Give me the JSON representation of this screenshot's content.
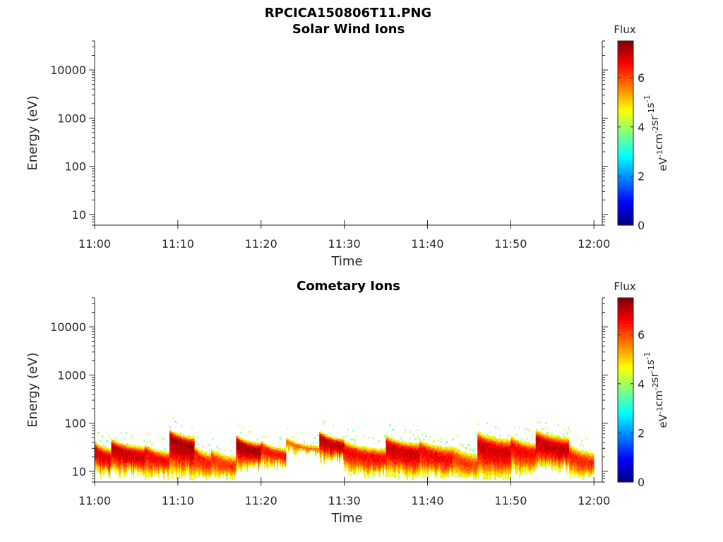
{
  "figure": {
    "title": "RPCICA150806T11.PNG"
  },
  "chart_data": [
    {
      "type": "heatmap",
      "title": "Solar Wind Ions",
      "xlabel": "Time",
      "ylabel": "Energy (eV)",
      "yscale": "log",
      "xlim": [
        "11:00",
        "12:01"
      ],
      "ylim": [
        6,
        40000
      ],
      "x_ticks": [
        "11:00",
        "11:10",
        "11:20",
        "11:30",
        "11:40",
        "11:50",
        "12:00"
      ],
      "y_ticks": [
        "10",
        "100",
        "1000",
        "10000"
      ],
      "colorbar": {
        "label": "Flux",
        "unit": "eV-1cm-2sr-1s-1",
        "range": [
          0,
          7.5
        ],
        "ticks": [
          "0",
          "2",
          "4",
          "6"
        ],
        "colormap": "jet"
      },
      "segments": []
    },
    {
      "type": "heatmap",
      "title": "Cometary Ions",
      "xlabel": "Time",
      "ylabel": "Energy (eV)",
      "yscale": "log",
      "xlim": [
        "11:00",
        "12:01"
      ],
      "ylim": [
        6,
        40000
      ],
      "x_ticks": [
        "11:00",
        "11:10",
        "11:20",
        "11:30",
        "11:40",
        "11:50",
        "12:00"
      ],
      "y_ticks": [
        "10",
        "100",
        "1000",
        "10000"
      ],
      "colorbar": {
        "label": "Flux",
        "unit": "eV-1cm-2sr-1s-1",
        "range": [
          0,
          7.5
        ],
        "ticks": [
          "0",
          "2",
          "4",
          "6"
        ],
        "colormap": "jet"
      },
      "segments": [
        {
          "t0": "11:00",
          "t1": "11:02",
          "peak_energy": 22,
          "low_energy": 8,
          "high_energy": 35,
          "peak_flux": 6.8
        },
        {
          "t0": "11:02",
          "t1": "11:06",
          "peak_energy": 25,
          "low_energy": 8,
          "high_energy": 38,
          "peak_flux": 7.0
        },
        {
          "t0": "11:06",
          "t1": "11:09",
          "peak_energy": 20,
          "low_energy": 7,
          "high_energy": 30,
          "peak_flux": 6.6
        },
        {
          "t0": "11:09",
          "t1": "11:12",
          "peak_energy": 40,
          "low_energy": 7,
          "high_energy": 60,
          "peak_flux": 7.2
        },
        {
          "t0": "11:12",
          "t1": "11:14",
          "peak_energy": 18,
          "low_energy": 6,
          "high_energy": 28,
          "peak_flux": 6.4
        },
        {
          "t0": "11:14",
          "t1": "11:17",
          "peak_energy": 15,
          "low_energy": 6,
          "high_energy": 25,
          "peak_flux": 6.2
        },
        {
          "t0": "11:17",
          "t1": "11:20",
          "peak_energy": 32,
          "low_energy": 10,
          "high_energy": 45,
          "peak_flux": 7.2
        },
        {
          "t0": "11:20",
          "t1": "11:23",
          "peak_energy": 25,
          "low_energy": 12,
          "high_energy": 35,
          "peak_flux": 6.5
        },
        {
          "t0": "11:23",
          "t1": "11:27",
          "peak_energy": 33,
          "low_energy": 22,
          "high_energy": 40,
          "peak_flux": 5.8
        },
        {
          "t0": "11:27",
          "t1": "11:30",
          "peak_energy": 40,
          "low_energy": 15,
          "high_energy": 55,
          "peak_flux": 7.1
        },
        {
          "t0": "11:30",
          "t1": "11:35",
          "peak_energy": 22,
          "low_energy": 8,
          "high_energy": 35,
          "peak_flux": 6.6
        },
        {
          "t0": "11:35",
          "t1": "11:39",
          "peak_energy": 28,
          "low_energy": 7,
          "high_energy": 45,
          "peak_flux": 6.9
        },
        {
          "t0": "11:39",
          "t1": "11:43",
          "peak_energy": 22,
          "low_energy": 7,
          "high_energy": 38,
          "peak_flux": 6.6
        },
        {
          "t0": "11:43",
          "t1": "11:46",
          "peak_energy": 16,
          "low_energy": 6,
          "high_energy": 28,
          "peak_flux": 6.1
        },
        {
          "t0": "11:46",
          "t1": "11:50",
          "peak_energy": 30,
          "low_energy": 6,
          "high_energy": 55,
          "peak_flux": 6.9
        },
        {
          "t0": "11:50",
          "t1": "11:53",
          "peak_energy": 28,
          "low_energy": 8,
          "high_energy": 45,
          "peak_flux": 6.6
        },
        {
          "t0": "11:53",
          "t1": "11:57",
          "peak_energy": 35,
          "low_energy": 10,
          "high_energy": 60,
          "peak_flux": 7.0
        },
        {
          "t0": "11:57",
          "t1": "12:00",
          "peak_energy": 18,
          "low_energy": 6,
          "high_energy": 30,
          "peak_flux": 6.3
        }
      ]
    }
  ]
}
